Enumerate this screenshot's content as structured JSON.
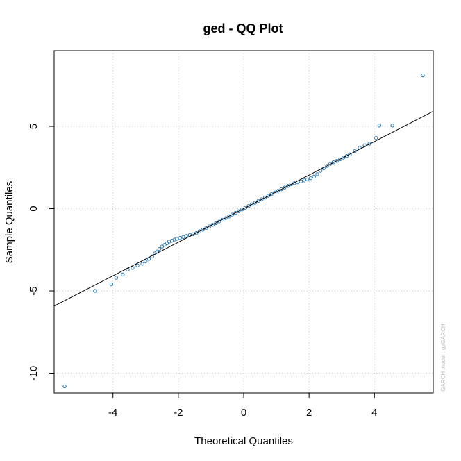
{
  "chart_data": {
    "type": "scatter",
    "title": "ged - QQ Plot",
    "xlabel": "Theoretical Quantiles",
    "ylabel": "Sample Quantiles",
    "watermark": "GARCH model : gjrGARCH",
    "xlim": [
      -5.8,
      5.8
    ],
    "ylim": [
      -11.2,
      9.6
    ],
    "xticks": [
      -4,
      -2,
      0,
      2,
      4
    ],
    "yticks": [
      -10,
      -5,
      0,
      5
    ],
    "grid": true,
    "colors": {
      "points": "#2c7bb6",
      "line": "#000000",
      "grid": "#c8c8c8",
      "axes": "#000000"
    },
    "reference_line": {
      "intercept": 0.0,
      "slope": 1.02
    },
    "series": [
      {
        "points": [
          [
            -5.48,
            -10.8
          ],
          [
            -4.55,
            -5.0
          ],
          [
            -4.05,
            -4.6
          ],
          [
            -3.9,
            -4.2
          ],
          [
            -3.7,
            -4.0
          ],
          [
            -3.55,
            -3.7
          ],
          [
            -3.4,
            -3.6
          ],
          [
            -3.25,
            -3.45
          ],
          [
            -3.1,
            -3.35
          ],
          [
            -3.0,
            -3.2
          ],
          [
            -2.9,
            -3.05
          ],
          [
            -2.8,
            -2.9
          ],
          [
            -2.72,
            -2.72
          ],
          [
            -2.65,
            -2.6
          ],
          [
            -2.58,
            -2.45
          ],
          [
            -2.5,
            -2.3
          ],
          [
            -2.42,
            -2.2
          ],
          [
            -2.35,
            -2.1
          ],
          [
            -2.28,
            -2.0
          ],
          [
            -2.2,
            -1.95
          ],
          [
            -2.12,
            -1.88
          ],
          [
            -2.05,
            -1.83
          ],
          [
            -1.95,
            -1.78
          ],
          [
            -1.85,
            -1.72
          ],
          [
            -1.75,
            -1.66
          ],
          [
            -1.65,
            -1.6
          ],
          [
            -1.55,
            -1.55
          ],
          [
            -1.45,
            -1.48
          ],
          [
            -1.35,
            -1.38
          ],
          [
            -1.25,
            -1.28
          ],
          [
            -1.15,
            -1.18
          ],
          [
            -1.05,
            -1.08
          ],
          [
            -0.95,
            -0.98
          ],
          [
            -0.85,
            -0.88
          ],
          [
            -0.75,
            -0.78
          ],
          [
            -0.65,
            -0.67
          ],
          [
            -0.55,
            -0.57
          ],
          [
            -0.45,
            -0.47
          ],
          [
            -0.35,
            -0.36
          ],
          [
            -0.25,
            -0.26
          ],
          [
            -0.15,
            -0.16
          ],
          [
            -0.05,
            -0.05
          ],
          [
            0.05,
            0.05
          ],
          [
            0.15,
            0.16
          ],
          [
            0.25,
            0.26
          ],
          [
            0.35,
            0.36
          ],
          [
            0.45,
            0.47
          ],
          [
            0.55,
            0.57
          ],
          [
            0.65,
            0.67
          ],
          [
            0.75,
            0.78
          ],
          [
            0.85,
            0.88
          ],
          [
            0.95,
            0.98
          ],
          [
            1.05,
            1.08
          ],
          [
            1.15,
            1.18
          ],
          [
            1.25,
            1.28
          ],
          [
            1.35,
            1.38
          ],
          [
            1.45,
            1.48
          ],
          [
            1.55,
            1.55
          ],
          [
            1.65,
            1.6
          ],
          [
            1.75,
            1.66
          ],
          [
            1.85,
            1.72
          ],
          [
            1.95,
            1.78
          ],
          [
            2.05,
            1.85
          ],
          [
            2.15,
            1.95
          ],
          [
            2.25,
            2.1
          ],
          [
            2.35,
            2.3
          ],
          [
            2.45,
            2.45
          ],
          [
            2.55,
            2.6
          ],
          [
            2.65,
            2.72
          ],
          [
            2.75,
            2.82
          ],
          [
            2.85,
            2.9
          ],
          [
            2.95,
            3.0
          ],
          [
            3.05,
            3.1
          ],
          [
            3.15,
            3.2
          ],
          [
            3.25,
            3.3
          ],
          [
            3.4,
            3.5
          ],
          [
            3.55,
            3.7
          ],
          [
            3.7,
            3.85
          ],
          [
            3.85,
            3.95
          ],
          [
            4.05,
            4.3
          ],
          [
            4.15,
            5.05
          ],
          [
            4.55,
            5.05
          ],
          [
            5.48,
            8.1
          ]
        ]
      }
    ]
  }
}
